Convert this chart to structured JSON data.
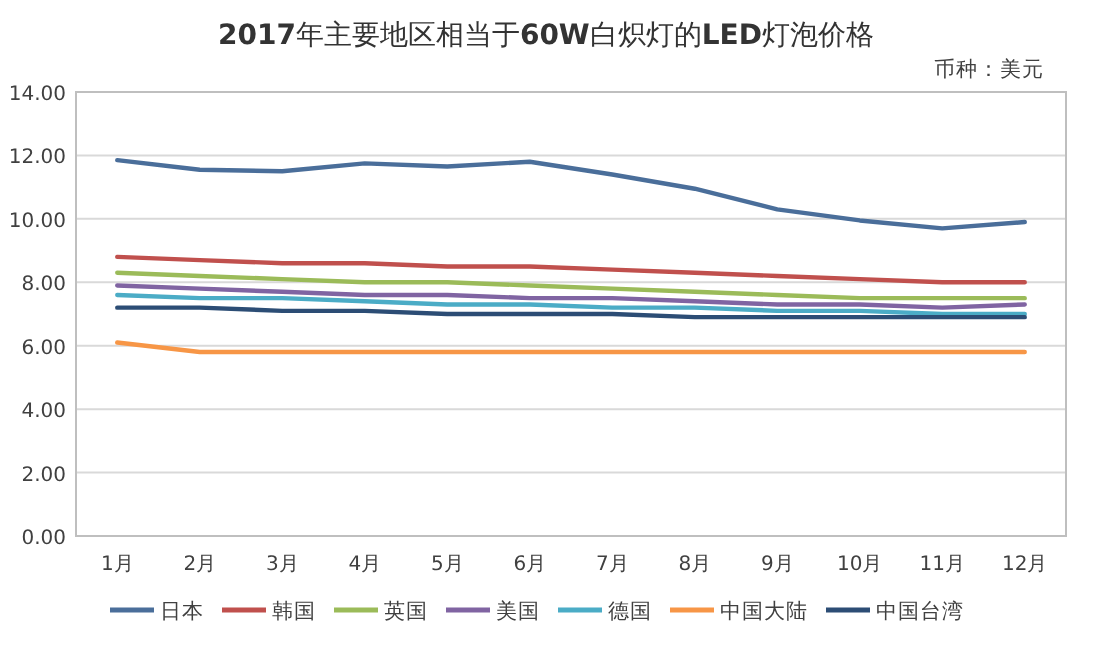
{
  "chart_data": {
    "type": "line",
    "title": "**2017**年主要地区相当于**60W**白炽灯的**LED**灯泡价格",
    "subtitle": "币种：美元",
    "categories": [
      "1月",
      "2月",
      "3月",
      "4月",
      "5月",
      "6月",
      "7月",
      "8月",
      "9月",
      "10月",
      "11月",
      "12月"
    ],
    "series": [
      {
        "name": "日本",
        "color": "#4a6e9a",
        "values": [
          11.85,
          11.55,
          11.5,
          11.75,
          11.65,
          11.8,
          11.4,
          10.95,
          10.3,
          9.95,
          9.7,
          9.9
        ]
      },
      {
        "name": "韩国",
        "color": "#c0504d",
        "values": [
          8.8,
          8.7,
          8.6,
          8.6,
          8.5,
          8.5,
          8.4,
          8.3,
          8.2,
          8.1,
          8.0,
          8.0
        ]
      },
      {
        "name": "英国",
        "color": "#9bbb59",
        "values": [
          8.3,
          8.2,
          8.1,
          8.0,
          8.0,
          7.9,
          7.8,
          7.7,
          7.6,
          7.5,
          7.5,
          7.5
        ]
      },
      {
        "name": "美国",
        "color": "#8064a2",
        "values": [
          7.9,
          7.8,
          7.7,
          7.6,
          7.6,
          7.5,
          7.5,
          7.4,
          7.3,
          7.3,
          7.2,
          7.3
        ]
      },
      {
        "name": "德国",
        "color": "#4bacc6",
        "values": [
          7.6,
          7.5,
          7.5,
          7.4,
          7.3,
          7.3,
          7.2,
          7.2,
          7.1,
          7.1,
          7.0,
          7.0
        ]
      },
      {
        "name": "中国大陆",
        "color": "#f79646",
        "values": [
          6.1,
          5.8,
          5.8,
          5.8,
          5.8,
          5.8,
          5.8,
          5.8,
          5.8,
          5.8,
          5.8,
          5.8
        ]
      },
      {
        "name": "中国台湾",
        "color": "#2c4d75",
        "values": [
          7.2,
          7.2,
          7.1,
          7.1,
          7.0,
          7.0,
          7.0,
          6.9,
          6.9,
          6.9,
          6.9,
          6.9
        ]
      }
    ],
    "ylim": [
      0,
      14
    ],
    "yticks": [
      {
        "value": 0,
        "label": "0.00"
      },
      {
        "value": 2,
        "label": "2.00"
      },
      {
        "value": 4,
        "label": "4.00"
      },
      {
        "value": 6,
        "label": "6.00"
      },
      {
        "value": 8,
        "label": "8.00"
      },
      {
        "value": 10,
        "label": "10.00"
      },
      {
        "value": 12,
        "label": "12.00"
      },
      {
        "value": 14,
        "label": "14.00"
      }
    ],
    "grid": "y",
    "legend": "bottom",
    "marker": "none",
    "line_style": "solid"
  }
}
